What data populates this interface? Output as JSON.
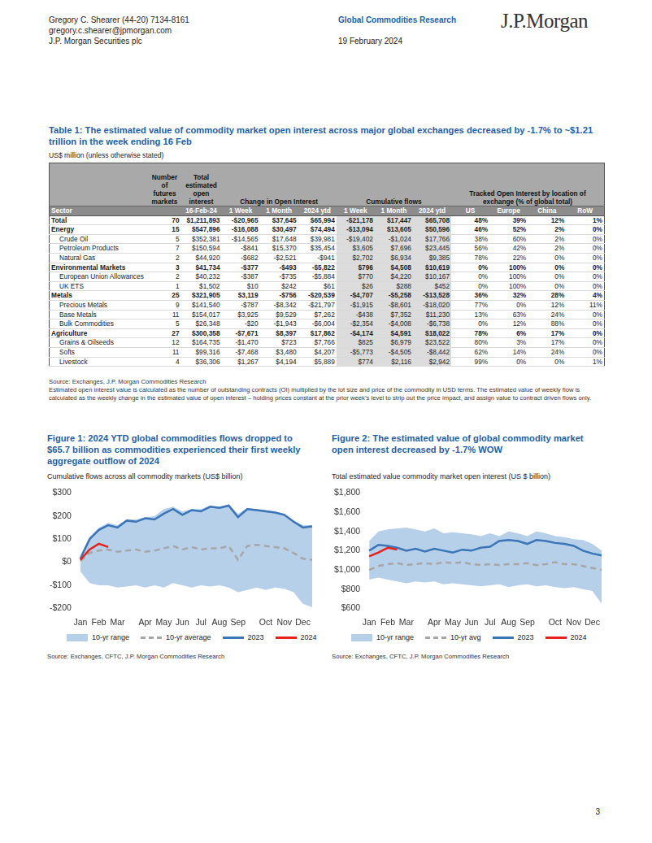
{
  "header": {
    "author": "Gregory C. Shearer  (44-20) 7134-8161",
    "email": "gregory.c.shearer@jpmorgan.com",
    "firm": "J.P. Morgan Securities plc",
    "publication": "Global Commodities Research",
    "date": "19 February 2024",
    "logo": "J.P.Morgan"
  },
  "table": {
    "title": "Table 1: The estimated value of commodity market open interest across major global exchanges decreased by -1.7% to ~$1.21 trillion in the week ending 16 Feb",
    "units": "US$ million (unless otherwise stated)",
    "group_headers": [
      "",
      "Number of futures markets",
      "Total estimated open interest",
      "Change in Open Interest",
      null,
      null,
      "Cumulative flows",
      null,
      null,
      "Tracked Open Interest by location of exchange (% of global total)",
      null,
      null,
      null
    ],
    "columns": [
      "Sector",
      "",
      "16-Feb-24",
      "1 Week",
      "1 Month",
      "2024 ytd",
      "1 Week",
      "1 Month",
      "2024 ytd",
      "US",
      "Europe",
      "China",
      "RoW"
    ],
    "rows": [
      {
        "kind": "total",
        "cells": [
          "Total",
          "70",
          "$1,211,893",
          "-$20,965",
          "$37,645",
          "$65,994",
          "-$21,178",
          "$17,447",
          "$65,708",
          "48%",
          "39%",
          "12%",
          "1%"
        ]
      },
      {
        "kind": "sector",
        "cells": [
          "Energy",
          "15",
          "$547,896",
          "-$16,088",
          "$30,497",
          "$74,494",
          "-$13,094",
          "$13,605",
          "$50,596",
          "46%",
          "52%",
          "2%",
          "0%"
        ]
      },
      {
        "kind": "sub",
        "cells": [
          "Crude Oil",
          "5",
          "$352,381",
          "-$14,565",
          "$17,648",
          "$39,981",
          "-$19,402",
          "-$1,024",
          "$17,766",
          "38%",
          "60%",
          "2%",
          "0%"
        ]
      },
      {
        "kind": "sub",
        "cells": [
          "Petroleum Products",
          "7",
          "$150,594",
          "-$841",
          "$15,370",
          "$35,454",
          "$3,605",
          "$7,696",
          "$23,445",
          "56%",
          "42%",
          "2%",
          "0%"
        ]
      },
      {
        "kind": "sub",
        "cells": [
          "Natural Gas",
          "2",
          "$44,920",
          "-$682",
          "-$2,521",
          "-$941",
          "$2,702",
          "$6,934",
          "$9,385",
          "78%",
          "22%",
          "0%",
          "0%"
        ]
      },
      {
        "kind": "sector",
        "cells": [
          "Environmental Markets",
          "3",
          "$41,734",
          "-$377",
          "-$493",
          "-$5,822",
          "$796",
          "$4,508",
          "$10,619",
          "0%",
          "100%",
          "0%",
          "0%"
        ]
      },
      {
        "kind": "sub",
        "cells": [
          "European Union Allowances",
          "2",
          "$40,232",
          "-$387",
          "-$735",
          "-$5,884",
          "$770",
          "$4,220",
          "$10,167",
          "0%",
          "100%",
          "0%",
          "0%"
        ]
      },
      {
        "kind": "sub",
        "cells": [
          "UK ETS",
          "1",
          "$1,502",
          "$10",
          "$242",
          "$61",
          "$26",
          "$288",
          "$452",
          "0%",
          "100%",
          "0%",
          "0%"
        ]
      },
      {
        "kind": "sector",
        "cells": [
          "Metals",
          "25",
          "$321,905",
          "$3,119",
          "-$756",
          "-$20,539",
          "-$4,707",
          "-$5,258",
          "-$13,528",
          "36%",
          "32%",
          "28%",
          "4%"
        ]
      },
      {
        "kind": "sub",
        "cells": [
          "Precious Metals",
          "9",
          "$141,540",
          "-$787",
          "-$8,342",
          "-$21,797",
          "-$1,915",
          "-$8,601",
          "-$18,020",
          "77%",
          "0%",
          "12%",
          "11%"
        ]
      },
      {
        "kind": "sub",
        "cells": [
          "Base Metals",
          "11",
          "$154,017",
          "$3,925",
          "$9,529",
          "$7,262",
          "-$438",
          "$7,352",
          "$11,230",
          "13%",
          "63%",
          "24%",
          "0%"
        ]
      },
      {
        "kind": "sub",
        "cells": [
          "Bulk Commodities",
          "5",
          "$26,348",
          "-$20",
          "-$1,943",
          "-$6,004",
          "-$2,354",
          "-$4,008",
          "-$6,738",
          "0%",
          "12%",
          "88%",
          "0%"
        ]
      },
      {
        "kind": "sector",
        "cells": [
          "Agriculture",
          "27",
          "$300,358",
          "-$7,671",
          "$8,397",
          "$17,862",
          "-$4,174",
          "$4,591",
          "$18,022",
          "78%",
          "6%",
          "17%",
          "0%"
        ]
      },
      {
        "kind": "sub",
        "cells": [
          "Grains & Oilseeds",
          "12",
          "$164,735",
          "-$1,470",
          "$723",
          "$7,766",
          "$825",
          "$6,979",
          "$23,522",
          "80%",
          "3%",
          "17%",
          "0%"
        ]
      },
      {
        "kind": "sub",
        "cells": [
          "Softs",
          "11",
          "$99,316",
          "-$7,468",
          "$3,480",
          "$4,207",
          "-$5,773",
          "-$4,505",
          "-$8,442",
          "62%",
          "14%",
          "24%",
          "0%"
        ]
      },
      {
        "kind": "sub",
        "cells": [
          "Livestock",
          "4",
          "$36,306",
          "$1,267",
          "$4,194",
          "$5,889",
          "$774",
          "$2,116",
          "$2,942",
          "99%",
          "0%",
          "0%",
          "1%"
        ]
      }
    ],
    "source": "Source: Exchanges, J.P. Morgan Commodities Research",
    "note": "Estimated open interest value is calculated as the number of outstanding contracts (OI) multiplied by the lot size and price of the commodity in USD terms. The estimated value of weekly flow is calculated as the weekly change in the estimated value of open interest – holding prices constant at the prior week’s level to strip out the price impact, and assign value to contract driven flows only."
  },
  "chart_data": [
    {
      "type": "line",
      "title": "Figure 1: 2024 YTD global commodities flows dropped to $65.7 billion as commodities experienced their first weekly aggregate outflow of 2024",
      "subtitle": "Cumulative flows across all commodity markets (US$ billion)",
      "categories": [
        "Jan",
        null,
        "Feb",
        null,
        "Mar",
        null,
        null,
        "Apr",
        null,
        "May",
        null,
        "Jun",
        null,
        "Jul",
        null,
        "Aug",
        null,
        "Sep",
        null,
        null,
        "Oct",
        null,
        "Nov",
        null,
        "Dec",
        null
      ],
      "series": [
        {
          "name": "10-yr range",
          "type": "area",
          "color": "#b7d0ea",
          "low": [
            -40,
            -90,
            -100,
            -100,
            -110,
            -105,
            -100,
            -110,
            -100,
            -110,
            -90,
            -100,
            -110,
            -100,
            -105,
            -100,
            -110,
            -130,
            -120,
            -110,
            -120,
            -110,
            -115,
            -130,
            -180,
            -195
          ],
          "high": [
            30,
            110,
            150,
            170,
            160,
            185,
            185,
            195,
            200,
            230,
            240,
            220,
            230,
            230,
            245,
            240,
            250,
            210,
            235,
            230,
            225,
            220,
            210,
            180,
            160,
            160
          ]
        },
        {
          "name": "10-yr average",
          "color": "#a6a6a6",
          "line_style": "dashed",
          "values": [
            5,
            40,
            50,
            55,
            45,
            50,
            55,
            45,
            50,
            60,
            70,
            55,
            65,
            55,
            60,
            60,
            70,
            10,
            70,
            75,
            70,
            65,
            60,
            40,
            15,
            10
          ]
        },
        {
          "name": "2023",
          "color": "#3a75b8",
          "line_style": "solid",
          "values": [
            15,
            100,
            140,
            160,
            150,
            180,
            175,
            190,
            185,
            210,
            230,
            205,
            225,
            220,
            240,
            235,
            245,
            195,
            230,
            225,
            220,
            215,
            205,
            175,
            150,
            155
          ]
        },
        {
          "name": "2024",
          "color": "#e8201c",
          "line_style": "solid",
          "values": [
            10,
            55,
            80,
            65.7,
            null,
            null,
            null,
            null,
            null,
            null,
            null,
            null,
            null,
            null,
            null,
            null,
            null,
            null,
            null,
            null,
            null,
            null,
            null,
            null,
            null,
            null
          ]
        }
      ],
      "ylim": [
        -200,
        300
      ],
      "yticks": [
        {
          "value": -200,
          "label": "-$200"
        },
        {
          "value": -100,
          "label": "-$100"
        },
        {
          "value": 0,
          "label": "$0"
        },
        {
          "value": 100,
          "label": "$100"
        },
        {
          "value": 200,
          "label": "$200"
        },
        {
          "value": 300,
          "label": "$300"
        }
      ],
      "grid": false,
      "legend": "bottom",
      "source": "Source: Exchanges, CFTC, J.P. Morgan Commodities Research"
    },
    {
      "type": "line",
      "title": "Figure 2: The estimated value of global commodity market open interest decreased by -1.7% WOW",
      "subtitle": "Total estimated value commodity market open interest (US $ billion)",
      "categories": [
        "Jan",
        null,
        "Feb",
        null,
        "Mar",
        null,
        null,
        "Apr",
        null,
        "May",
        null,
        "Jun",
        null,
        "Jul",
        null,
        "Aug",
        null,
        "Sep",
        null,
        null,
        "Oct",
        null,
        "Nov",
        null,
        "Dec",
        null
      ],
      "series": [
        {
          "name": "10-yr range",
          "type": "area",
          "color": "#b7d0ea",
          "low": [
            900,
            920,
            900,
            880,
            860,
            880,
            870,
            880,
            850,
            860,
            850,
            840,
            830,
            840,
            850,
            820,
            840,
            850,
            830,
            840,
            820,
            810,
            820,
            800,
            780,
            650
          ],
          "high": [
            1300,
            1400,
            1420,
            1430,
            1440,
            1420,
            1400,
            1430,
            1380,
            1390,
            1380,
            1370,
            1350,
            1380,
            1350,
            1400,
            1380,
            1350,
            1400,
            1380,
            1350,
            1340,
            1320,
            1310,
            1270,
            1200
          ]
        },
        {
          "name": "10-yr avg",
          "color": "#a6a6a6",
          "line_style": "dashed",
          "values": [
            1000,
            1040,
            1060,
            1070,
            1050,
            1060,
            1070,
            1060,
            1080,
            1070,
            1080,
            1060,
            1050,
            1060,
            1050,
            1060,
            1060,
            1070,
            1050,
            1060,
            1080,
            1060,
            1060,
            1040,
            1020,
            1000
          ]
        },
        {
          "name": "2023",
          "color": "#3a75b8",
          "line_style": "solid",
          "values": [
            1200,
            1260,
            1250,
            1230,
            1200,
            1220,
            1190,
            1220,
            1200,
            1180,
            1210,
            1200,
            1230,
            1240,
            1300,
            1310,
            1300,
            1270,
            1310,
            1300,
            1280,
            1270,
            1250,
            1200,
            1170,
            1150
          ]
        },
        {
          "name": "2024",
          "color": "#e8201c",
          "line_style": "solid",
          "values": [
            1140,
            1180,
            1230,
            1212,
            null,
            null,
            null,
            null,
            null,
            null,
            null,
            null,
            null,
            null,
            null,
            null,
            null,
            null,
            null,
            null,
            null,
            null,
            null,
            null,
            null,
            null
          ]
        }
      ],
      "ylim": [
        600,
        1800
      ],
      "yticks": [
        {
          "value": 600,
          "label": "$600"
        },
        {
          "value": 800,
          "label": "$800"
        },
        {
          "value": 1000,
          "label": "$1,000"
        },
        {
          "value": 1200,
          "label": "$1,200"
        },
        {
          "value": 1400,
          "label": "$1,400"
        },
        {
          "value": 1600,
          "label": "$1,600"
        },
        {
          "value": 1800,
          "label": "$1,800"
        }
      ],
      "grid": false,
      "legend": "bottom",
      "source": "Source: Exchanges, CFTC, J.P. Morgan Commodities Research"
    }
  ],
  "page_number": "3"
}
